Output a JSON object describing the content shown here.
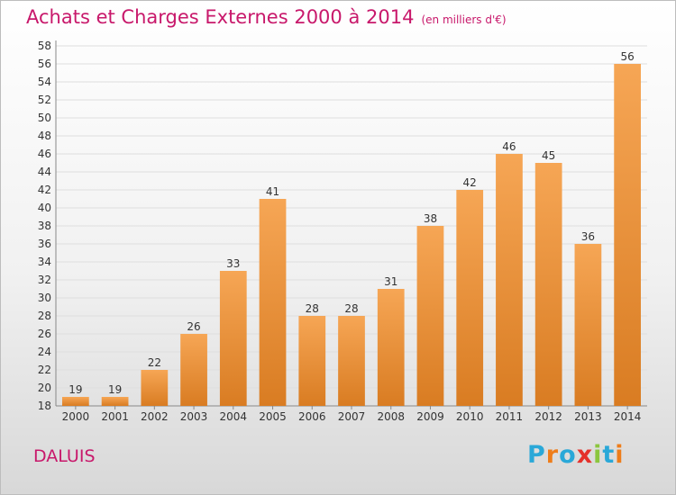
{
  "chart_data": {
    "type": "bar",
    "title": "Achats et Charges Externes 2000 à 2014",
    "subtitle": "(en milliers d'€)",
    "categories": [
      "2000",
      "2001",
      "2002",
      "2003",
      "2004",
      "2005",
      "2006",
      "2007",
      "2008",
      "2009",
      "2010",
      "2011",
      "2012",
      "2013",
      "2014"
    ],
    "values": [
      19,
      19,
      22,
      26,
      33,
      41,
      28,
      28,
      31,
      38,
      42,
      46,
      45,
      36,
      56
    ],
    "ylim": [
      18,
      58
    ],
    "yticks": [
      18,
      20,
      22,
      24,
      26,
      28,
      30,
      32,
      34,
      36,
      38,
      40,
      42,
      44,
      46,
      48,
      50,
      52,
      54,
      56,
      58
    ],
    "grid": true,
    "legend": "none"
  },
  "place_name": "DALUIS",
  "logo": {
    "letters": [
      "P",
      "r",
      "o",
      "x",
      "i",
      "t",
      "i"
    ]
  },
  "colors": {
    "accent": "#c8186b",
    "bar_top": "#f6a655",
    "bar_bottom": "#d97c22"
  }
}
